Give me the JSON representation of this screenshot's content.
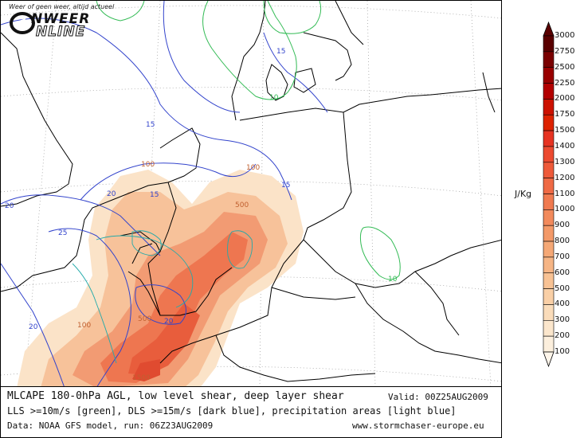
{
  "logo": {
    "tagline": "Weer of geen weer, altijd actueel",
    "brand_line1": "NWEER",
    "brand_line2": "NLINE"
  },
  "caption": {
    "title": "MLCAPE 180-0hPa AGL, low level shear, deep layer shear",
    "valid": "Valid: 00Z25AUG2009",
    "subtitle": "LLS >=10m/s [green], DLS >=15m/s [dark blue], precipitation areas [light blue]",
    "data_source": "Data: NOAA GFS model, run: 06Z23AUG2009",
    "website": "www.stormchaser-europe.eu"
  },
  "legend": {
    "unit": "J/Kg",
    "levels": [
      "3000",
      "2750",
      "2500",
      "2250",
      "2000",
      "1750",
      "1500",
      "1400",
      "1300",
      "1200",
      "1100",
      "1000",
      "900",
      "800",
      "700",
      "600",
      "500",
      "400",
      "300",
      "200",
      "100"
    ],
    "colors": [
      "#5a0000",
      "#7a0000",
      "#990000",
      "#b30000",
      "#cc1100",
      "#dd2200",
      "#e63322",
      "#ec4a30",
      "#ee5a3a",
      "#ef6a45",
      "#f07a50",
      "#f28a5c",
      "#f39968",
      "#f5a876",
      "#f6b585",
      "#f8c294",
      "#f9cfa6",
      "#fadcba",
      "#fbe6cc",
      "#fcefdd"
    ],
    "bottom_color": "#fdf5ea"
  },
  "map_labels": {
    "green_contours": [
      "10",
      "10"
    ],
    "blue_contours": [
      "15",
      "15",
      "15",
      "15",
      "20",
      "20",
      "20",
      "25",
      "20"
    ],
    "cape_contours": [
      "100",
      "100",
      "100",
      "500",
      "500",
      "1500"
    ]
  },
  "colors": {
    "lls_green": "#33bb55",
    "dls_blue": "#3344cc",
    "precip_lightblue": "#66aaff",
    "cape_base": "#f28a5c",
    "border": "#000000"
  }
}
